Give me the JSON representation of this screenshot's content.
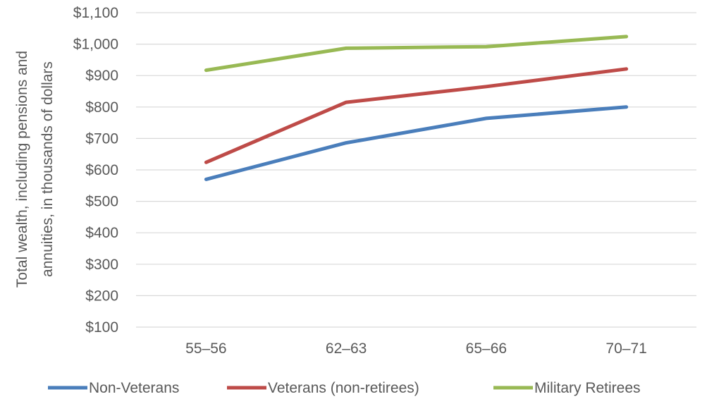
{
  "chart_data": {
    "type": "line",
    "categories": [
      "55–56",
      "62–63",
      "65–66",
      "70–71"
    ],
    "series": [
      {
        "name": "Non-Veterans",
        "color": "#4a7ebb",
        "values": [
          570,
          686,
          764,
          800
        ]
      },
      {
        "name": "Veterans (non-retirees)",
        "color": "#be4b48",
        "values": [
          624,
          815,
          865,
          921
        ]
      },
      {
        "name": "Military Retirees",
        "color": "#98b954",
        "values": [
          917,
          987,
          992,
          1024
        ]
      }
    ],
    "ylabel_lines": [
      "Total wealth, including pensions and",
      "annuities, in thousands of dollars"
    ],
    "ylim": [
      100,
      1100
    ],
    "yticks": [
      100,
      200,
      300,
      400,
      500,
      600,
      700,
      800,
      900,
      1000,
      1100
    ],
    "ytick_labels": [
      "$100",
      "$200",
      "$300",
      "$400",
      "$500",
      "$600",
      "$700",
      "$800",
      "$900",
      "$1,000",
      "$1,100"
    ],
    "grid": true,
    "legend_position": "bottom"
  }
}
